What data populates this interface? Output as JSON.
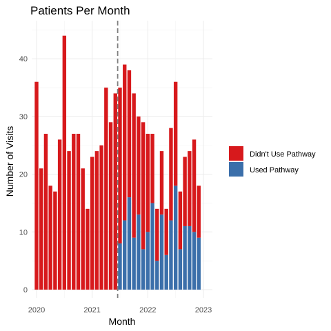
{
  "chart_data": {
    "type": "bar",
    "title": "Patients Per Month",
    "xlabel": "Month",
    "ylabel": "Number of Visits",
    "stacked": true,
    "grid": true,
    "legend_position": "right",
    "x_ticks": [
      "2020",
      "2021",
      "2022",
      "2023"
    ],
    "y_ticks": [
      0,
      10,
      20,
      30,
      40
    ],
    "ylim": [
      0,
      46
    ],
    "xlim": [
      "2019-12",
      "2023-02"
    ],
    "reference_line": {
      "x": "2021-07",
      "style": "dashed"
    },
    "months": [
      "2020-01",
      "2020-02",
      "2020-03",
      "2020-04",
      "2020-05",
      "2020-06",
      "2020-07",
      "2020-08",
      "2020-09",
      "2020-10",
      "2020-11",
      "2020-12",
      "2021-01",
      "2021-02",
      "2021-03",
      "2021-04",
      "2021-05",
      "2021-06",
      "2021-07",
      "2021-08",
      "2021-09",
      "2021-10",
      "2021-11",
      "2021-12",
      "2022-01",
      "2022-02",
      "2022-03",
      "2022-04",
      "2022-05",
      "2022-06",
      "2022-07",
      "2022-08",
      "2022-09",
      "2022-10",
      "2022-11",
      "2022-12",
      "2023-01"
    ],
    "series": [
      {
        "name": "Used Pathway",
        "color": "#3b6faa",
        "values": [
          0,
          0,
          0,
          0,
          0,
          0,
          0,
          0,
          0,
          0,
          0,
          0,
          0,
          0,
          0,
          0,
          0,
          0,
          8,
          12,
          16,
          9,
          13,
          7,
          10,
          15,
          5,
          13,
          6,
          12,
          18,
          7,
          11,
          11,
          10,
          9,
          0
        ]
      },
      {
        "name": "Didn't Use Pathway",
        "color": "#d7191c",
        "values": [
          36,
          21,
          27,
          18,
          17,
          26,
          44,
          24,
          27,
          27,
          21,
          14,
          23,
          24,
          25,
          35,
          29,
          34,
          27,
          27,
          22,
          25,
          17,
          22,
          17,
          12,
          9,
          11,
          8,
          16,
          18,
          10,
          12,
          13,
          16,
          9,
          0
        ]
      }
    ]
  }
}
